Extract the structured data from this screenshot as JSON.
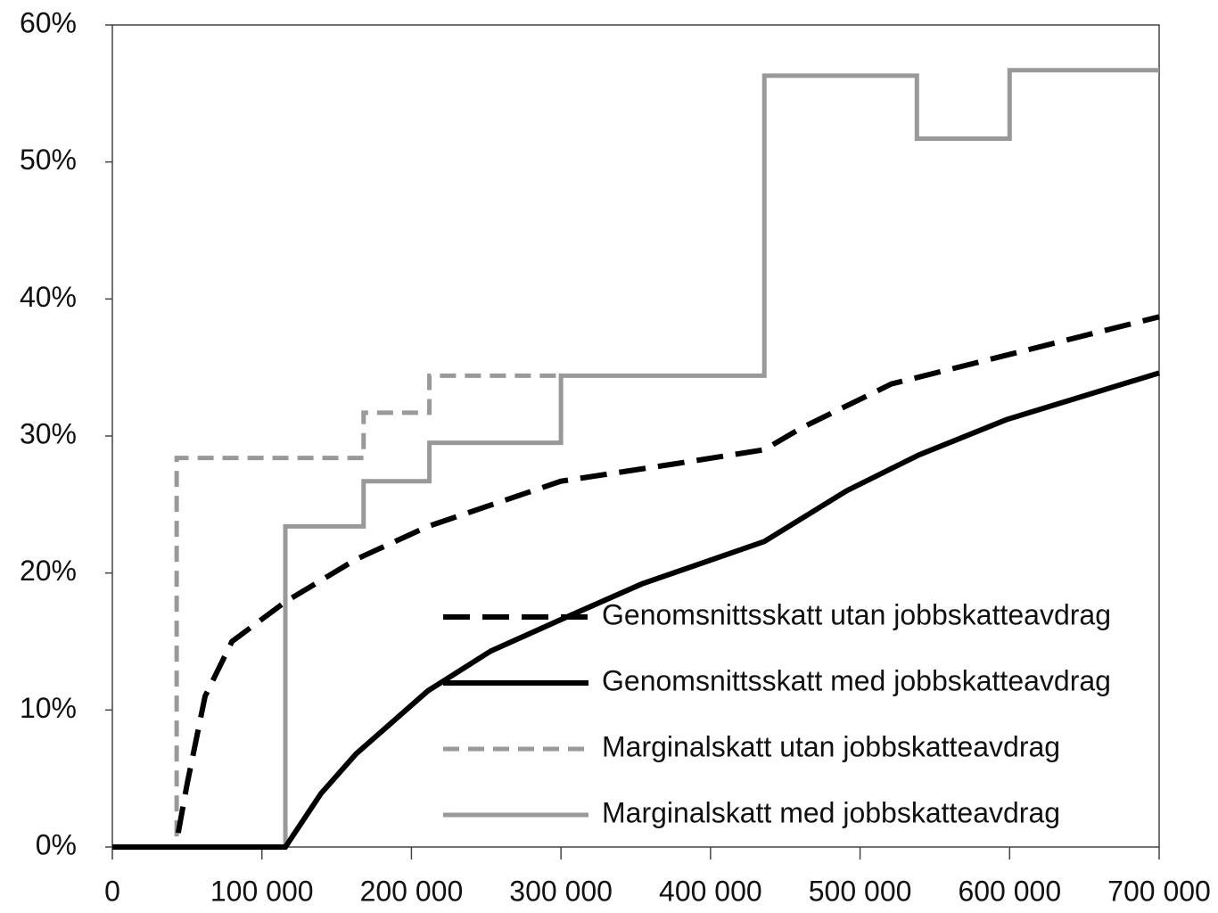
{
  "chart_data": {
    "type": "line",
    "xlim": [
      0,
      700000
    ],
    "ylim": [
      0,
      60
    ],
    "xticks": [
      {
        "value": 0,
        "label": "0"
      },
      {
        "value": 100000,
        "label": "100 000"
      },
      {
        "value": 200000,
        "label": "200 000"
      },
      {
        "value": 300000,
        "label": "300 000"
      },
      {
        "value": 400000,
        "label": "400 000"
      },
      {
        "value": 500000,
        "label": "500 000"
      },
      {
        "value": 600000,
        "label": "600 000"
      },
      {
        "value": 700000,
        "label": "700 000"
      }
    ],
    "yticks": [
      {
        "value": 0,
        "label": "0%"
      },
      {
        "value": 10,
        "label": "10%"
      },
      {
        "value": 20,
        "label": "20%"
      },
      {
        "value": 30,
        "label": "30%"
      },
      {
        "value": 40,
        "label": "40%"
      },
      {
        "value": 50,
        "label": "50%"
      },
      {
        "value": 60,
        "label": "60%"
      }
    ],
    "legend": "lower right",
    "series": [
      {
        "name": "Genomsnittsskatt utan jobbskatteavdrag",
        "color": "#000000",
        "dash": "dashed",
        "x": [
          0,
          43000,
          44000,
          50000,
          56000,
          62000,
          80000,
          115700,
          163000,
          211000,
          300000,
          378000,
          436000,
          461000,
          521000,
          598000,
          700000
        ],
        "values": [
          0,
          0,
          1,
          4.6,
          7.8,
          11,
          15,
          17.9,
          21,
          23.4,
          26.7,
          28,
          29,
          30.6,
          33.8,
          35.9,
          38.7
        ]
      },
      {
        "name": "Genomsnittsskatt med jobbskatteavdrag",
        "color": "#000000",
        "dash": "solid",
        "x": [
          0,
          115700,
          139500,
          163000,
          211000,
          253000,
          300000,
          354000,
          436000,
          491000,
          539000,
          598000,
          700000
        ],
        "values": [
          0,
          0,
          3.9,
          6.8,
          11.4,
          14.3,
          16.6,
          19.2,
          22.3,
          26,
          28.6,
          31.2,
          34.6
        ]
      },
      {
        "name": "Marginalskatt utan jobbskatteavdrag",
        "color": "#999999",
        "dash": "dashed",
        "x": [
          0,
          43000,
          43000,
          168000,
          168000,
          212000,
          212000,
          300000
        ],
        "values": [
          0,
          0,
          28.4,
          28.4,
          31.7,
          31.7,
          34.4,
          34.4
        ]
      },
      {
        "name": "Marginalskatt med jobbskatteavdrag",
        "color": "#999999",
        "dash": "solid",
        "x": [
          0,
          115700,
          115700,
          168000,
          168000,
          212000,
          212000,
          300000,
          300000,
          436000,
          436000,
          538000,
          538000,
          600000,
          600000,
          700000
        ],
        "values": [
          0,
          0,
          23.4,
          23.4,
          26.7,
          26.7,
          29.5,
          29.5,
          34.4,
          34.4,
          56.3,
          56.3,
          51.7,
          51.7,
          56.7,
          56.7
        ]
      }
    ]
  }
}
